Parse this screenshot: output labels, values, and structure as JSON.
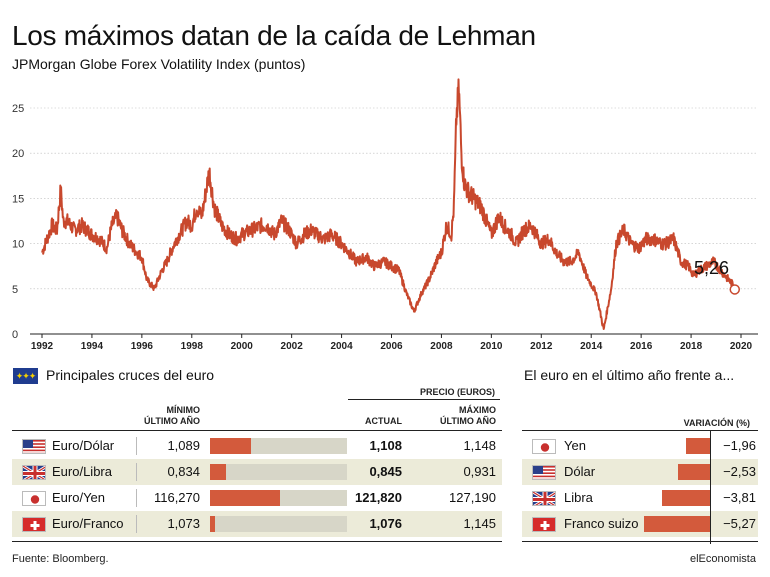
{
  "header": {
    "title": "Los máximos datan de la caída de Lehman",
    "subtitle": "JPMorgan Globe Forex Volatility Index (puntos)"
  },
  "chart_data": [
    {
      "type": "line",
      "title": "JPMorgan Globe Forex Volatility Index (puntos)",
      "xlabel": "",
      "ylabel": "",
      "ylim": [
        0,
        27
      ],
      "xlim": [
        1992,
        2020
      ],
      "yticks": [
        0,
        5,
        10,
        15,
        20,
        25
      ],
      "xticks": [
        "1992",
        "1994",
        "1996",
        "1998",
        "2000",
        "2002",
        "2004",
        "2006",
        "2008",
        "2010",
        "2012",
        "2014",
        "2016",
        "2018",
        "2020"
      ],
      "grid": true,
      "color": "#c8482d",
      "annotation": "5,26",
      "series": [
        {
          "name": "JPMorgan Globe Forex Volatility Index",
          "x": [
            1992.0,
            1992.2,
            1992.4,
            1992.6,
            1992.75,
            1992.85,
            1993.0,
            1993.3,
            1993.6,
            1994.0,
            1994.3,
            1994.6,
            1994.8,
            1995.0,
            1995.2,
            1995.5,
            1995.8,
            1996.0,
            1996.2,
            1996.5,
            1996.8,
            1997.0,
            1997.3,
            1997.6,
            1997.8,
            1998.0,
            1998.2,
            1998.4,
            1998.7,
            1998.9,
            1999.2,
            1999.5,
            1999.8,
            2000.0,
            2000.4,
            2000.8,
            2001.0,
            2001.3,
            2001.6,
            2001.9,
            2002.2,
            2002.5,
            2002.8,
            2003.0,
            2003.3,
            2003.6,
            2004.0,
            2004.3,
            2004.6,
            2005.0,
            2005.3,
            2005.7,
            2006.0,
            2006.3,
            2006.6,
            2006.9,
            2007.2,
            2007.5,
            2007.8,
            2008.0,
            2008.2,
            2008.4,
            2008.5,
            2008.6,
            2008.7,
            2008.8,
            2008.9,
            2009.0,
            2009.3,
            2009.6,
            2010.0,
            2010.3,
            2010.5,
            2010.8,
            2011.0,
            2011.3,
            2011.6,
            2011.8,
            2012.0,
            2012.3,
            2012.6,
            2012.9,
            2013.2,
            2013.5,
            2013.8,
            2014.0,
            2014.2,
            2014.5,
            2014.8,
            2015.0,
            2015.3,
            2015.6,
            2015.9,
            2016.2,
            2016.5,
            2016.8,
            2017.0,
            2017.3,
            2017.6,
            2017.9,
            2018.1,
            2018.3,
            2018.6,
            2018.9,
            2019.2,
            2019.5,
            2019.75
          ],
          "values": [
            9.0,
            10.5,
            12.0,
            11.5,
            16.0,
            12.5,
            12.5,
            11.5,
            12.0,
            11.0,
            10.5,
            9.5,
            12.0,
            13.0,
            11.5,
            10.0,
            9.0,
            8.5,
            6.0,
            5.0,
            7.0,
            8.0,
            10.0,
            11.5,
            12.5,
            12.0,
            14.0,
            13.0,
            18.0,
            14.0,
            12.0,
            11.0,
            10.5,
            11.0,
            11.5,
            12.0,
            12.0,
            11.0,
            12.5,
            11.5,
            10.0,
            11.0,
            11.5,
            11.0,
            10.5,
            11.0,
            10.0,
            9.0,
            8.0,
            8.5,
            7.5,
            8.0,
            7.5,
            7.0,
            4.5,
            2.5,
            4.5,
            6.0,
            8.0,
            9.0,
            12.0,
            11.0,
            14.0,
            24.0,
            27.0,
            20.0,
            17.0,
            16.0,
            15.0,
            14.0,
            11.0,
            13.0,
            12.0,
            11.0,
            10.0,
            11.5,
            12.0,
            11.0,
            10.0,
            10.5,
            9.0,
            8.0,
            8.0,
            9.0,
            6.5,
            5.5,
            4.5,
            0.5,
            5.0,
            10.0,
            11.5,
            10.0,
            9.5,
            10.5,
            10.5,
            10.0,
            10.0,
            10.5,
            8.0,
            7.5,
            6.5,
            7.0,
            7.5,
            8.0,
            7.0,
            6.0,
            5.26
          ]
        }
      ]
    },
    {
      "type": "table",
      "title": "Principales cruces del euro",
      "columns": [
        "",
        "Mínimo último año",
        "",
        "Actual",
        "Máximo último año"
      ],
      "rows": [
        {
          "pair": "Euro/Dólar",
          "min": "1,089",
          "actual": "1,108",
          "max": "1,148",
          "position": 0.3
        },
        {
          "pair": "Euro/Libra",
          "min": "0,834",
          "actual": "0,845",
          "max": "0,931",
          "position": 0.12
        },
        {
          "pair": "Euro/Yen",
          "min": "116,270",
          "actual": "121,820",
          "max": "127,190",
          "position": 0.51
        },
        {
          "pair": "Euro/Franco",
          "min": "1,073",
          "actual": "1,076",
          "max": "1,145",
          "position": 0.04
        }
      ]
    },
    {
      "type": "bar",
      "title": "El euro en el último año frente a...",
      "ylabel": "Variación (%)",
      "categories": [
        "Yen",
        "Dólar",
        "Libra",
        "Franco suizo"
      ],
      "values": [
        -1.96,
        -2.53,
        -3.81,
        -5.27
      ],
      "labels": [
        "−1,96",
        "−2,53",
        "−3,81",
        "−5,27"
      ],
      "xlim": [
        -5.6,
        0
      ]
    }
  ],
  "table": {
    "section_title": "Principales cruces del euro",
    "price_header": "PRECIO (EUROS)",
    "min_header": [
      "MÍNIMO",
      "ÚLTIMO AÑO"
    ],
    "actual_header": "ACTUAL",
    "max_header": [
      "MÁXIMO",
      "ÚLTIMO AÑO"
    ]
  },
  "variation": {
    "section_title": "El euro en el último año frente a...",
    "header": "VARIACIÓN (%)"
  },
  "flags": {
    "usa": "flag-usa-icon",
    "uk": "flag-uk-icon",
    "japan": "flag-japan-icon",
    "swiss": "flag-swiss-icon",
    "eu": "flag-eu-icon"
  },
  "colors": {
    "line": "#c8482d",
    "bar": "#d35a3c",
    "track": "#d7d6c8",
    "shade": "#ecebd9"
  },
  "footer": {
    "source": "Fuente: Bloomberg.",
    "brand": "elEconomista"
  }
}
